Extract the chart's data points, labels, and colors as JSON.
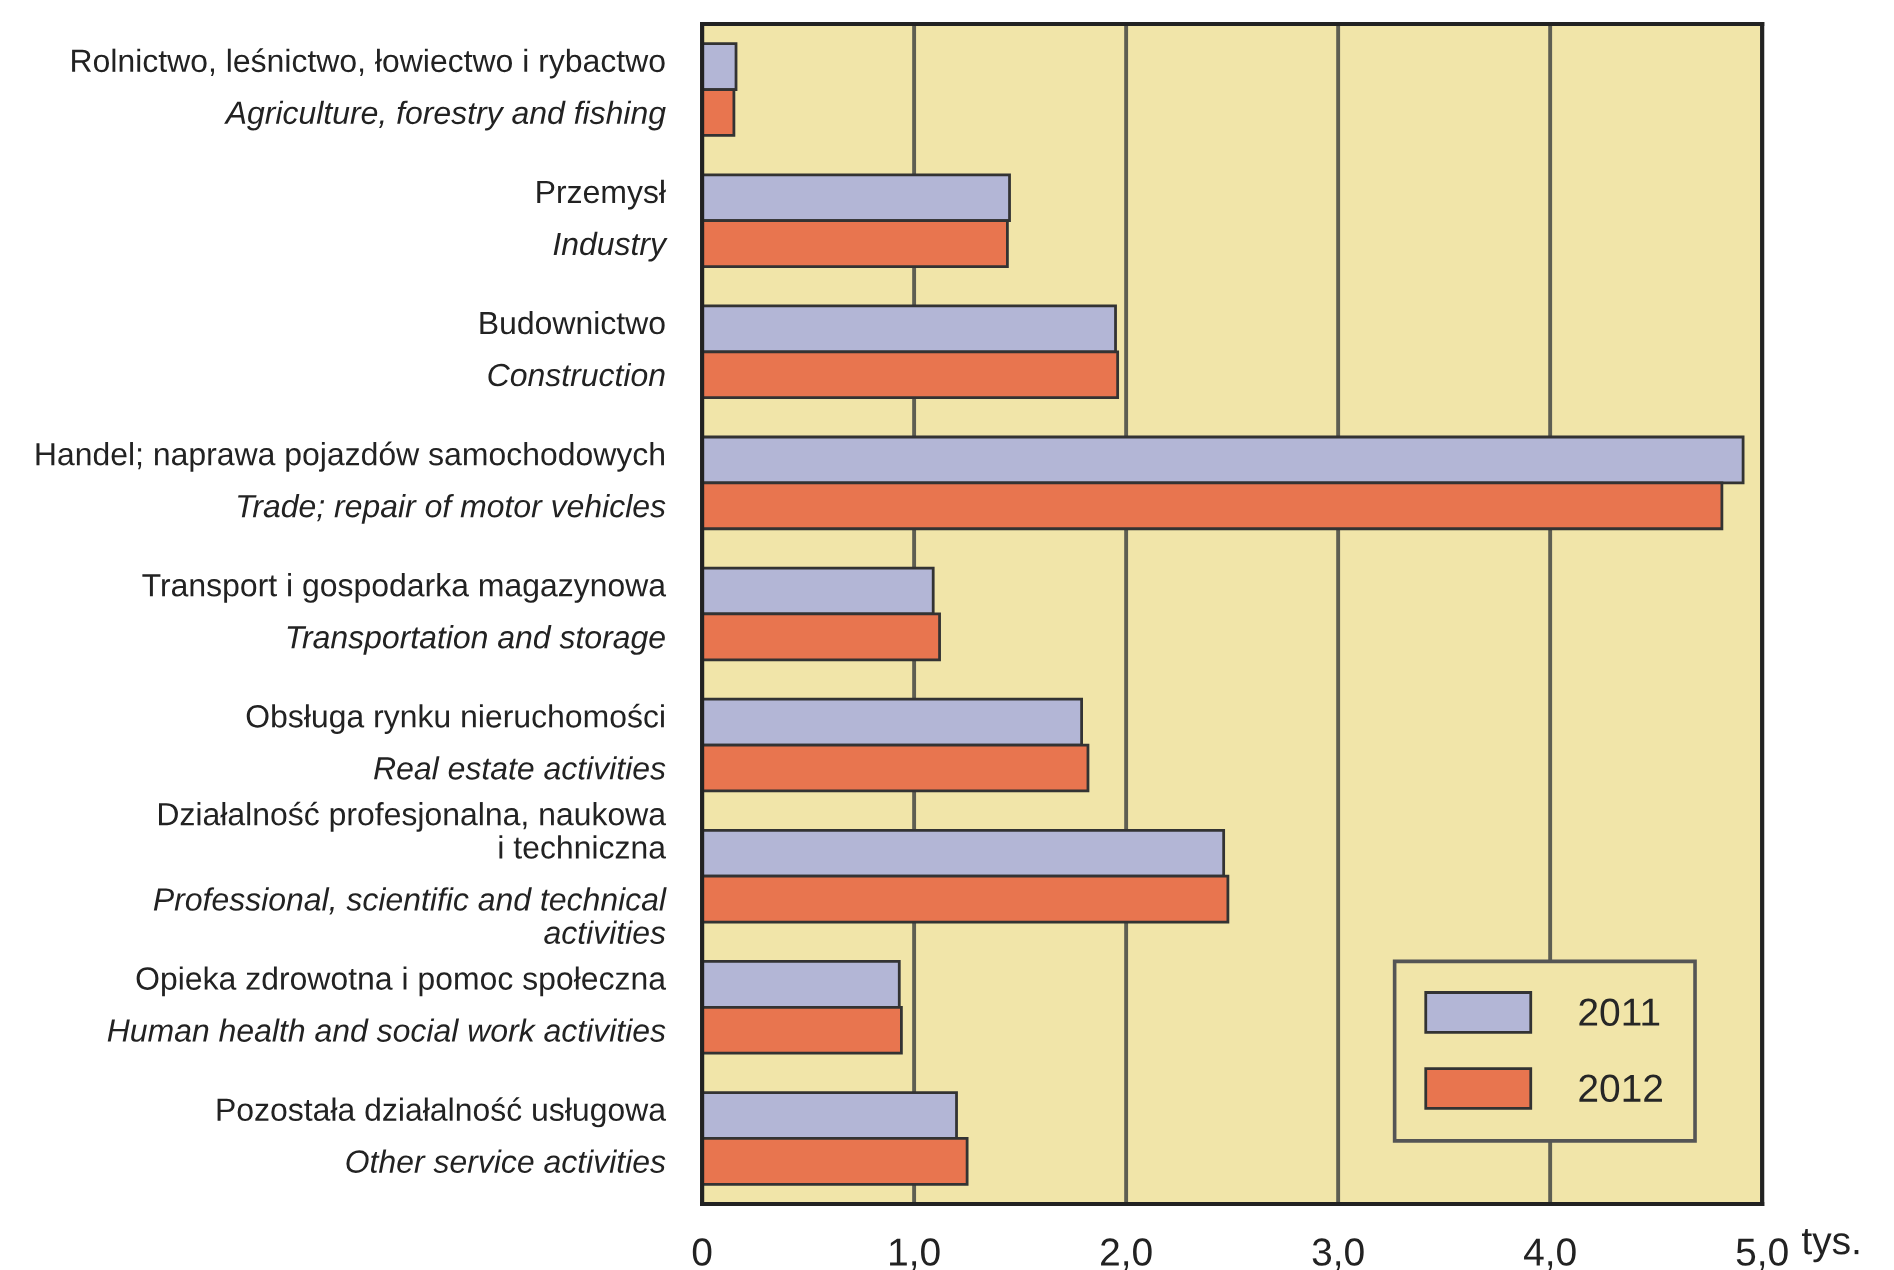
{
  "chart_data": {
    "type": "bar",
    "orientation": "horizontal",
    "xlabel": "tys.",
    "categories": [
      "Rolnictwo, leśnictwo, łowiectwo i rybactwo\n\nAgriculture, forestry and fishing",
      "Przemysł\n\nIndustry",
      "Budownictwo\n\nConstruction",
      "Handel; naprawa pojazdów samochodowych\n\nTrade; repair of motor vehicles",
      "Transport i gospodarka magazynowa\n\nTransportation and storage",
      "Obsługa rynku nieruchomości\n\nReal estate activities",
      "Działalność profesjonalna, naukowa\ni techniczna\n\nProfessional, scientific and technical\nactivities",
      "Opieka zdrowotna i pomoc społeczna\n\nHuman health and social work activities",
      "Pozostała działalność usługowa\n\nOther service activities"
    ],
    "series": [
      {
        "name": "2011",
        "color": "#b3b6d6",
        "values": [
          0.16,
          1.45,
          1.95,
          4.91,
          1.09,
          1.79,
          2.46,
          0.93,
          1.2
        ]
      },
      {
        "name": "2012",
        "color": "#e8754f",
        "values": [
          0.15,
          1.44,
          1.96,
          4.81,
          1.12,
          1.82,
          2.48,
          0.94,
          1.25
        ]
      }
    ],
    "xlim": [
      0,
      5
    ],
    "xticks": [
      0,
      {
        "value": 1,
        "label": "1,0"
      },
      {
        "value": 2,
        "label": "2,0"
      },
      {
        "value": 3,
        "label": "3,0"
      },
      {
        "value": 4,
        "label": "4,0"
      },
      {
        "value": 5,
        "label": "5,0"
      }
    ],
    "grid": "x",
    "legend": "bottom right"
  }
}
